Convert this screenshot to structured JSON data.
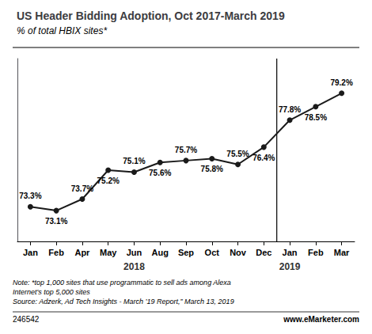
{
  "chart_data": {
    "type": "line",
    "title": "US Header Bidding Adoption, Oct 2017-March 2019",
    "subtitle": "% of total HBIX sites*",
    "categories": [
      "Jan",
      "Feb",
      "Apr",
      "May",
      "Jun",
      "Aug",
      "Sep",
      "Oct",
      "Nov",
      "Dec",
      "Jan",
      "Feb",
      "Mar"
    ],
    "values": [
      73.3,
      73.1,
      73.7,
      75.2,
      75.1,
      75.6,
      75.7,
      75.8,
      75.5,
      76.4,
      77.8,
      78.5,
      79.2
    ],
    "value_labels": [
      "73.3%",
      "73.1%",
      "73.7%",
      "75.2%",
      "75.1%",
      "75.6%",
      "75.7%",
      "75.8%",
      "75.5%",
      "76.4%",
      "77.8%",
      "78.5%",
      "79.2%"
    ],
    "color": "#1a1a1a",
    "marker": "circle",
    "data_labels": true,
    "ylim": [
      71.5,
      81.0
    ],
    "tick_labels": "x",
    "grid": false,
    "annotations": [
      {
        "text": "2018",
        "index": 4
      },
      {
        "text": "2019",
        "index": 10
      }
    ],
    "divider_after": 9,
    "note": "Note: *top 1,000 sites that use programmatic to sell ads among Alexa\nInternet's top 5,000 sites\nSource: Adzerk, Ad Tech Insights - March ’19 Report,” March 13, 2019",
    "footer_left": "246542",
    "footer_right": "www.eMarketer.com"
  }
}
